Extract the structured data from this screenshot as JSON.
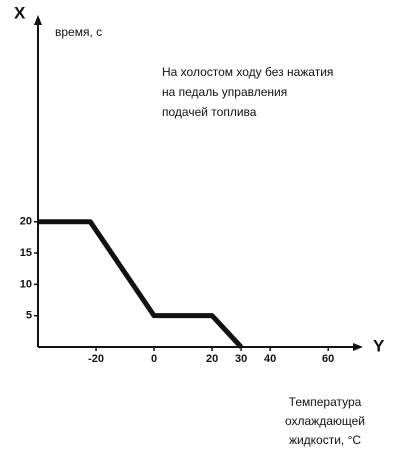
{
  "chart_data": {
    "type": "line",
    "x_axis_label": "Y",
    "y_axis_label": "X",
    "y_title": "время, с",
    "annotation": [
      "На холостом ходу без нажатия",
      "на педаль управления",
      "подачей топлива"
    ],
    "x_title": [
      "Температура",
      "охлаждающей",
      "жидкости, °С"
    ],
    "x": [
      -40,
      -22,
      0,
      20,
      30
    ],
    "values": [
      20,
      20,
      5,
      5,
      0
    ],
    "color": "#111111",
    "xlim": [
      -40,
      72
    ],
    "ylim": [
      0,
      53
    ],
    "xticks": [
      -20,
      0,
      20,
      30,
      40,
      60
    ],
    "yticks": [
      5,
      10,
      15,
      20
    ]
  }
}
